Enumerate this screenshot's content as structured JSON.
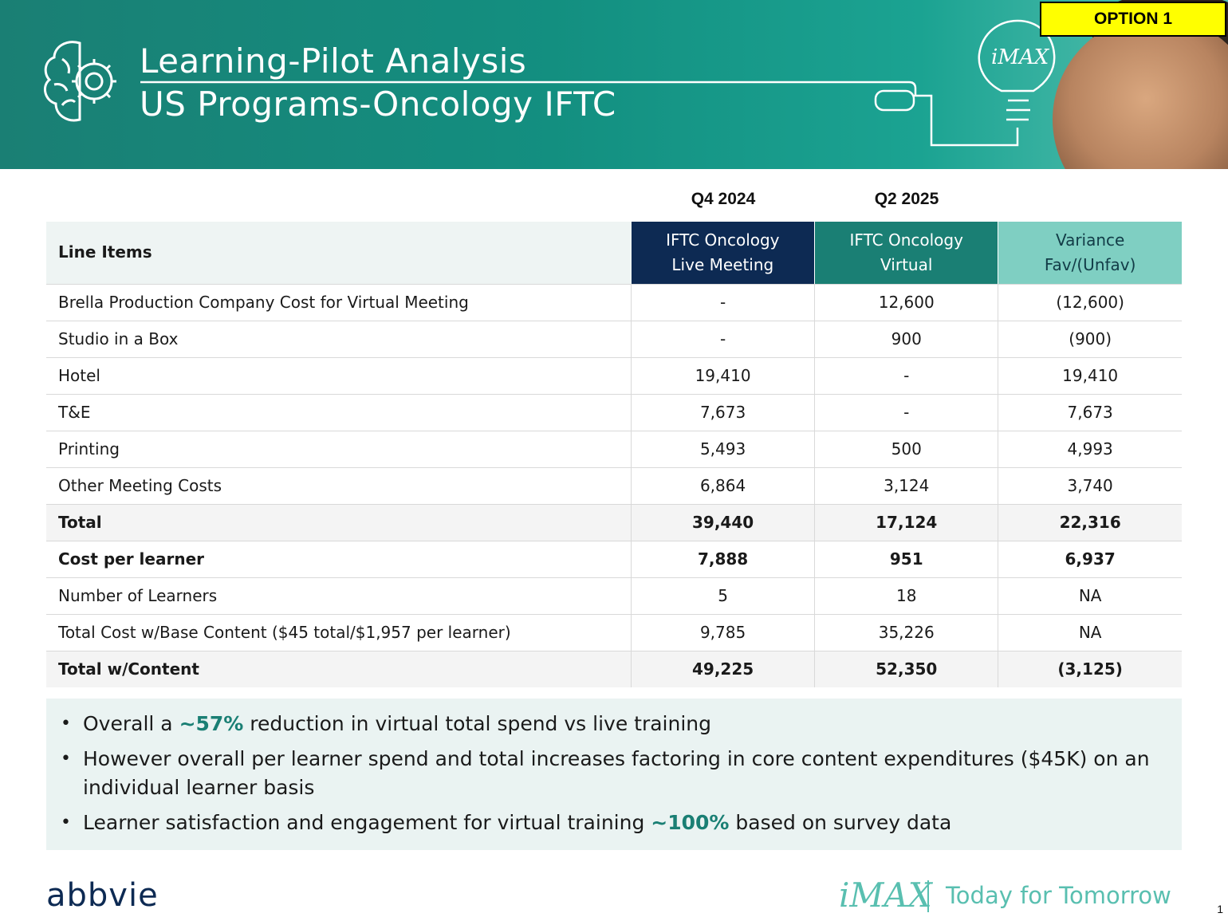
{
  "header": {
    "title_line1": "Learning-Pilot Analysis",
    "title_line2": "US Programs-Oncology IFTC",
    "option_badge": "OPTION 1",
    "bulb_text": "iMAX"
  },
  "periods": [
    "Q4 2024",
    "Q2 2025"
  ],
  "table": {
    "headers": {
      "line_items": "Line Items",
      "col1_line1": "IFTC Oncology",
      "col1_line2": "Live Meeting",
      "col2_line1": "IFTC Oncology",
      "col2_line2": "Virtual",
      "col3_line1": "Variance",
      "col3_line2": "Fav/(Unfav)"
    },
    "rows": [
      {
        "label": "Brella Production Company Cost for Virtual Meeting",
        "live": "-",
        "virtual": "12,600",
        "variance": "(12,600)"
      },
      {
        "label": "Studio in a Box",
        "live": "-",
        "virtual": "900",
        "variance": "(900)"
      },
      {
        "label": "Hotel",
        "live": "19,410",
        "virtual": "-",
        "variance": "19,410"
      },
      {
        "label": "T&E",
        "live": "7,673",
        "virtual": "-",
        "variance": "7,673"
      },
      {
        "label": "Printing",
        "live": "5,493",
        "virtual": "500",
        "variance": "4,993"
      },
      {
        "label": "Other Meeting Costs",
        "live": "6,864",
        "virtual": "3,124",
        "variance": "3,740"
      },
      {
        "label": "Total",
        "live": "39,440",
        "virtual": "17,124",
        "variance": "22,316"
      },
      {
        "label": "Cost per learner",
        "live": "7,888",
        "virtual": "951",
        "variance": "6,937"
      },
      {
        "label": "Number of Learners",
        "live": "5",
        "virtual": "18",
        "variance": "NA"
      },
      {
        "label": "Total Cost w/Base Content ($45 total/$1,957 per learner)",
        "live": "9,785",
        "virtual": "35,226",
        "variance": "NA"
      },
      {
        "label": "Total w/Content",
        "live": "49,225",
        "virtual": "52,350",
        "variance": "(3,125)"
      }
    ]
  },
  "notes": {
    "b1_pre": "Overall a ",
    "b1_hl": "~57%",
    "b1_post": " reduction in virtual total spend vs live training",
    "b2": "However overall per learner spend and total increases factoring in core content expenditures ($45K) on an individual learner basis",
    "b3_pre": "Learner satisfaction and engagement for virtual training ",
    "b3_hl": "~100%",
    "b3_post": " based on survey data"
  },
  "footer": {
    "brand": "abbvie",
    "imax": "iMAX",
    "tagline": "Today for Tomorrow",
    "page_number": "1"
  },
  "colors": {
    "teal": "#1a7f74",
    "navy": "#0d2a53",
    "light_teal": "#7fcfc2",
    "highlight": "#ffff00"
  },
  "icons": [
    "brain-gear-icon",
    "lightbulb-icon"
  ]
}
